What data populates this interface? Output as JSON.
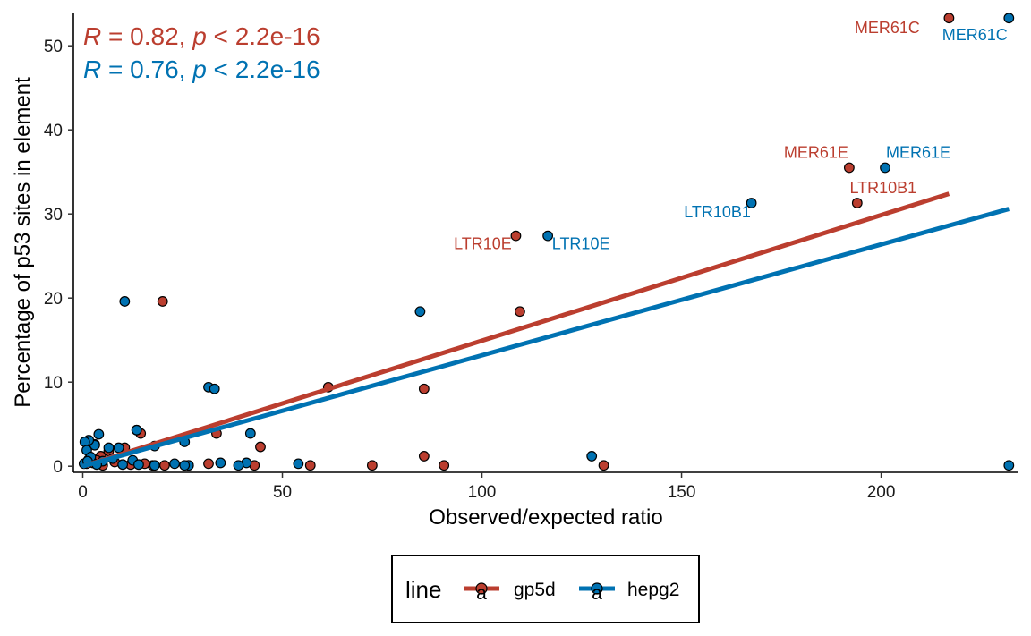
{
  "chart_data": {
    "type": "scatter",
    "xlabel": "Observed/expected ratio",
    "ylabel": "Percentage of p53 sites in element",
    "xlim": [
      -2,
      236
    ],
    "ylim": [
      -0.7,
      54
    ],
    "x_ticks": [
      0,
      50,
      100,
      150,
      200
    ],
    "y_ticks": [
      0,
      10,
      20,
      30,
      40,
      50
    ],
    "grid": false,
    "legend": {
      "title": "line",
      "placement": "bottom",
      "entries": [
        {
          "label": "gp5d",
          "glyph": "a"
        },
        {
          "label": "hepg2",
          "glyph": "a"
        }
      ]
    },
    "stats": [
      {
        "series": "gp5d",
        "r_symbol": "R",
        "r_text": " = 0.82, ",
        "p_symbol": "p",
        "p_text": " < 2.2e-16"
      },
      {
        "series": "hepg2",
        "r_symbol": "R",
        "r_text": " = 0.76, ",
        "p_symbol": "p",
        "p_text": " < 2.2e-16"
      }
    ],
    "series": [
      {
        "name": "gp5d",
        "color": "#BB3E2F",
        "fit": {
          "x": [
            0,
            217
          ],
          "y": [
            0,
            32.4
          ]
        },
        "points": [
          [
            217,
            53.3
          ],
          [
            192,
            35.5
          ],
          [
            194,
            31.3
          ],
          [
            108.5,
            27.4
          ],
          [
            109.5,
            18.4
          ],
          [
            85.5,
            9.2
          ],
          [
            20,
            19.6
          ],
          [
            61.5,
            9.4
          ],
          [
            44.5,
            2.3
          ],
          [
            33.5,
            3.9
          ],
          [
            14.5,
            3.9
          ],
          [
            13.5,
            4.3
          ],
          [
            85.5,
            1.2
          ],
          [
            72.5,
            0.1
          ],
          [
            90.5,
            0.1
          ],
          [
            130.5,
            0.1
          ],
          [
            57,
            0.1
          ],
          [
            43,
            0.1
          ],
          [
            31.5,
            0.3
          ],
          [
            26.5,
            0.1
          ],
          [
            20.5,
            0.1
          ],
          [
            17.5,
            0.1
          ],
          [
            10.5,
            2.2
          ],
          [
            6.5,
            1.8
          ],
          [
            4.5,
            1.2
          ],
          [
            3.5,
            0.7
          ],
          [
            2.5,
            0.4
          ],
          [
            1.5,
            0.8
          ],
          [
            1,
            0.3
          ],
          [
            8,
            0.5
          ],
          [
            12,
            0.2
          ],
          [
            15.5,
            0.3
          ],
          [
            5,
            0.1
          ],
          [
            3,
            2.6
          ]
        ],
        "labels": [
          {
            "text": "MER61C",
            "x": 217,
            "y": 53.3
          },
          {
            "text": "MER61E",
            "x": 192,
            "y": 35.5
          },
          {
            "text": "LTR10B1",
            "x": 194,
            "y": 31.3
          },
          {
            "text": "LTR10E",
            "x": 108.5,
            "y": 27.4
          }
        ]
      },
      {
        "name": "hepg2",
        "color": "#0072B2",
        "fit": {
          "x": [
            0,
            232
          ],
          "y": [
            0,
            30.6
          ]
        },
        "points": [
          [
            232,
            53.3
          ],
          [
            201,
            35.5
          ],
          [
            167.5,
            31.3
          ],
          [
            116.5,
            27.4
          ],
          [
            84.5,
            18.4
          ],
          [
            10.5,
            19.6
          ],
          [
            31.5,
            9.4
          ],
          [
            33,
            9.2
          ],
          [
            42,
            3.9
          ],
          [
            25.5,
            2.9
          ],
          [
            18,
            2.4
          ],
          [
            13.5,
            4.3
          ],
          [
            232,
            0.1
          ],
          [
            127.5,
            1.2
          ],
          [
            54,
            0.3
          ],
          [
            41,
            0.4
          ],
          [
            39,
            0.1
          ],
          [
            34.5,
            0.4
          ],
          [
            26.5,
            0.1
          ],
          [
            25.5,
            0.1
          ],
          [
            23,
            0.3
          ],
          [
            18,
            0.1
          ],
          [
            9,
            2.2
          ],
          [
            6.5,
            2.2
          ],
          [
            4,
            3.8
          ],
          [
            3,
            2.5
          ],
          [
            1.5,
            3.1
          ],
          [
            0.5,
            2.9
          ],
          [
            1,
            1.9
          ],
          [
            2,
            1.1
          ],
          [
            5,
            0.6
          ],
          [
            7.5,
            0.9
          ],
          [
            10,
            0.2
          ],
          [
            12.5,
            0.7
          ],
          [
            14,
            0.2
          ],
          [
            0.3,
            0.3
          ],
          [
            1.2,
            0.6
          ],
          [
            3.5,
            0.2
          ]
        ],
        "labels": [
          {
            "text": "MER61C",
            "x": 232,
            "y": 53.3
          },
          {
            "text": "MER61E",
            "x": 201,
            "y": 35.5
          },
          {
            "text": "LTR10B1",
            "x": 167.5,
            "y": 31.3
          },
          {
            "text": "LTR10E",
            "x": 116.5,
            "y": 27.4
          }
        ]
      }
    ]
  }
}
